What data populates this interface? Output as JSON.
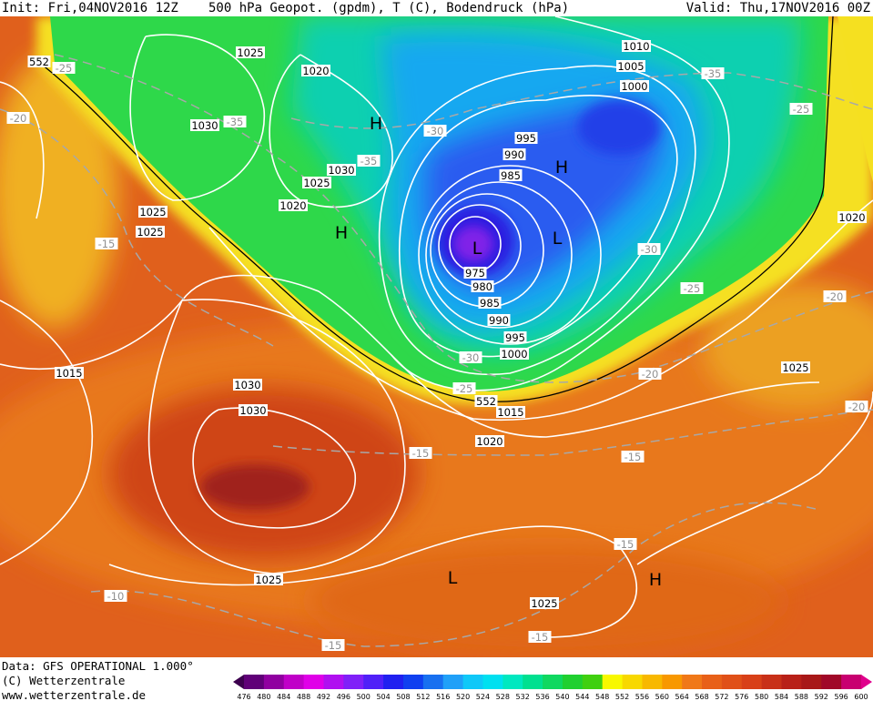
{
  "header": {
    "init": "Init: Fri,04NOV2016 12Z",
    "title": "500 hPa Geopot. (gpdm), T (C), Bodendruck (hPa)",
    "valid": "Valid: Thu,17NOV2016 00Z"
  },
  "footer": {
    "data": "Data: GFS OPERATIONAL 1.000°",
    "copyright": "(C) Wetterzentrale",
    "url": "www.wetterzentrale.de"
  },
  "legend": {
    "levels": [
      "476",
      "480",
      "484",
      "488",
      "492",
      "496",
      "500",
      "504",
      "508",
      "512",
      "516",
      "520",
      "524",
      "528",
      "532",
      "536",
      "540",
      "544",
      "548",
      "552",
      "556",
      "560",
      "564",
      "568",
      "572",
      "576",
      "580",
      "584",
      "588",
      "592",
      "596",
      "600"
    ]
  },
  "map_labels": [
    "1025",
    "552",
    "-25",
    "1020",
    "-20",
    "1030",
    "-35",
    "H",
    "-30",
    "1030",
    "1025",
    "-35",
    "1020",
    "H",
    "1025",
    "1025",
    "-15",
    "995",
    "990",
    "985",
    "H",
    "L",
    "L",
    "975",
    "980",
    "985",
    "990",
    "995",
    "1000",
    "-30",
    "-25",
    "552",
    "1015",
    "1020",
    "1010",
    "1005",
    "1000",
    "-35",
    "-25",
    "1020",
    "-30",
    "-25",
    "-20",
    "1025",
    "-20",
    "-20",
    "1015",
    "1030",
    "1030",
    "-15",
    "-15",
    "1025",
    "L",
    "-15",
    "H",
    "-10",
    "1025",
    "-15",
    "-15"
  ]
}
